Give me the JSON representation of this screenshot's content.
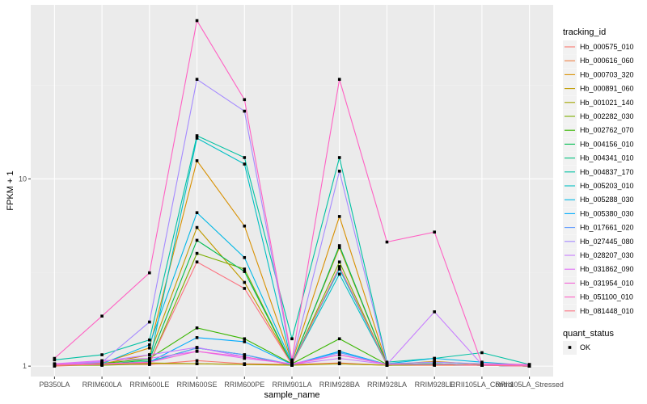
{
  "chart_data": {
    "type": "line",
    "xlabel": "sample_name",
    "ylabel": "FPKM + 1",
    "y_scale": "log10",
    "ylim": [
      0.88,
      85
    ],
    "y_ticks": [
      {
        "value": 1,
        "label": "1"
      },
      {
        "value": 10,
        "label": "10"
      }
    ],
    "categories": [
      "PB350LA",
      "RRIM600LA",
      "RRIM600LE",
      "RRIM600SE",
      "RRIM600PE",
      "RRIM901LA",
      "RRIM928BA",
      "RRIM928LA",
      "RRIM928LE",
      "RRII105LA_Control",
      "RRII105LA_Stressed"
    ],
    "legend_title": "tracking_id",
    "series": [
      {
        "name": "Hb_000575_010",
        "color": "#F8766D",
        "values": [
          1.0,
          1.02,
          1.02,
          1.07,
          1.03,
          1.02,
          1.04,
          1.01,
          1.02,
          1.01,
          1.0
        ]
      },
      {
        "name": "Hb_000616_060",
        "color": "#EE8044",
        "values": [
          1.01,
          1.02,
          1.03,
          1.03,
          1.02,
          1.02,
          1.03,
          1.01,
          1.01,
          1.01,
          1.0
        ]
      },
      {
        "name": "Hb_000703_320",
        "color": "#D89000",
        "values": [
          1.02,
          1.04,
          1.25,
          12.5,
          5.6,
          1.05,
          6.3,
          1.02,
          1.06,
          1.02,
          1.01
        ]
      },
      {
        "name": "Hb_000891_060",
        "color": "#C09B00",
        "values": [
          1.02,
          1.03,
          1.15,
          5.5,
          2.8,
          1.03,
          4.3,
          1.02,
          1.03,
          1.01,
          1.0
        ]
      },
      {
        "name": "Hb_001021_140",
        "color": "#A3A500",
        "values": [
          1.01,
          1.02,
          1.04,
          1.03,
          1.02,
          1.01,
          1.03,
          1.01,
          1.02,
          1.01,
          1.0
        ]
      },
      {
        "name": "Hb_002282_030",
        "color": "#7CAE00",
        "values": [
          1.01,
          1.01,
          1.03,
          4.0,
          3.3,
          1.02,
          3.6,
          1.01,
          1.02,
          1.01,
          1.0
        ]
      },
      {
        "name": "Hb_002762_070",
        "color": "#39B600",
        "values": [
          1.02,
          1.03,
          1.1,
          1.6,
          1.4,
          1.03,
          1.4,
          1.02,
          1.03,
          1.01,
          1.0
        ]
      },
      {
        "name": "Hb_004156_010",
        "color": "#00BB4E",
        "values": [
          1.02,
          1.02,
          1.08,
          4.7,
          3.2,
          1.02,
          4.4,
          1.02,
          1.02,
          1.01,
          1.0
        ]
      },
      {
        "name": "Hb_004341_010",
        "color": "#00BF7D",
        "values": [
          1.02,
          1.02,
          1.06,
          1.25,
          1.15,
          1.01,
          1.2,
          1.02,
          1.02,
          1.01,
          1.0
        ]
      },
      {
        "name": "Hb_004837_170",
        "color": "#00C1A3",
        "values": [
          1.08,
          1.15,
          1.38,
          17.0,
          13.0,
          1.4,
          13.0,
          1.05,
          1.1,
          1.18,
          1.02
        ]
      },
      {
        "name": "Hb_005203_010",
        "color": "#00BFC4",
        "values": [
          1.02,
          1.02,
          1.05,
          16.5,
          12.0,
          1.03,
          3.1,
          1.02,
          1.03,
          1.01,
          1.0
        ]
      },
      {
        "name": "Hb_005288_030",
        "color": "#00B8E5",
        "values": [
          1.02,
          1.03,
          1.3,
          6.6,
          3.8,
          1.04,
          3.3,
          1.03,
          1.1,
          1.05,
          1.01
        ]
      },
      {
        "name": "Hb_005380_030",
        "color": "#00ABFD",
        "values": [
          1.02,
          1.03,
          1.05,
          1.42,
          1.35,
          1.02,
          1.2,
          1.02,
          1.02,
          1.01,
          1.0
        ]
      },
      {
        "name": "Hb_017661_020",
        "color": "#619CFF",
        "values": [
          1.02,
          1.03,
          1.05,
          1.25,
          1.15,
          1.02,
          1.18,
          1.02,
          1.02,
          1.01,
          1.0
        ]
      },
      {
        "name": "Hb_027445_080",
        "color": "#A58AFF",
        "values": [
          1.02,
          1.05,
          1.72,
          34.0,
          23.0,
          1.05,
          11.0,
          1.03,
          1.05,
          1.03,
          1.01
        ]
      },
      {
        "name": "Hb_028207_030",
        "color": "#C77CFF",
        "values": [
          1.02,
          1.06,
          1.15,
          1.26,
          1.12,
          1.02,
          1.1,
          1.02,
          1.95,
          1.02,
          1.01
        ]
      },
      {
        "name": "Hb_031862_090",
        "color": "#E36EF6",
        "values": [
          1.03,
          1.07,
          1.1,
          1.2,
          1.1,
          1.03,
          1.15,
          1.02,
          1.02,
          1.01,
          1.0
        ]
      },
      {
        "name": "Hb_031954_010",
        "color": "#F365D7",
        "values": [
          1.02,
          1.03,
          1.05,
          1.2,
          1.12,
          1.02,
          1.15,
          1.02,
          1.02,
          1.01,
          1.0
        ]
      },
      {
        "name": "Hb_051100_010",
        "color": "#FF61C3",
        "values": [
          1.1,
          1.85,
          3.15,
          70.0,
          26.5,
          1.08,
          34.0,
          4.6,
          5.2,
          1.03,
          1.02
        ]
      },
      {
        "name": "Hb_081448_010",
        "color": "#FC717F",
        "values": [
          1.01,
          1.02,
          1.04,
          3.6,
          2.6,
          1.02,
          3.4,
          1.02,
          1.02,
          1.01,
          1.0
        ]
      }
    ],
    "shape_legend": {
      "title": "quant_status",
      "entries": [
        "OK"
      ]
    },
    "colors": {
      "panel": "#EBEBEB",
      "grid_major": "#FFFFFF",
      "grid_minor": "#F2F2F2",
      "point": "#000000"
    }
  }
}
